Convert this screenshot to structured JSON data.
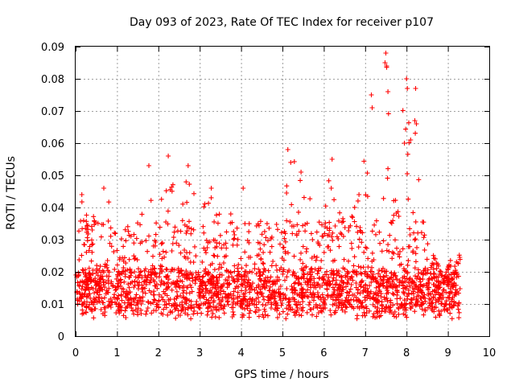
{
  "chart_data": {
    "type": "scatter",
    "title": "Day 093 of 2023, Rate Of TEC Index for receiver p107",
    "xlabel": "GPS time / hours",
    "ylabel": "ROTI / TECUs",
    "xlim": [
      0,
      10
    ],
    "ylim": [
      0,
      0.09
    ],
    "x_ticks": [
      "0",
      "1",
      "2",
      "3",
      "4",
      "5",
      "6",
      "7",
      "8",
      "9",
      "10"
    ],
    "y_ticks": [
      "0",
      "0.01",
      "0.02",
      "0.03",
      "0.04",
      "0.05",
      "0.06",
      "0.07",
      "0.08",
      "0.09"
    ],
    "grid": true,
    "marker": "+",
    "series_color": "#ff0000",
    "data_span_hours": [
      0,
      9.3
    ],
    "baseline_range": [
      0.007,
      0.02
    ],
    "envelope": [
      {
        "x": 0.0,
        "y": 0.04
      },
      {
        "x": 0.2,
        "y": 0.044
      },
      {
        "x": 0.5,
        "y": 0.038
      },
      {
        "x": 0.7,
        "y": 0.046
      },
      {
        "x": 1.0,
        "y": 0.035
      },
      {
        "x": 1.3,
        "y": 0.034
      },
      {
        "x": 1.5,
        "y": 0.036
      },
      {
        "x": 1.8,
        "y": 0.053
      },
      {
        "x": 2.0,
        "y": 0.037
      },
      {
        "x": 2.2,
        "y": 0.056
      },
      {
        "x": 2.5,
        "y": 0.04
      },
      {
        "x": 2.75,
        "y": 0.053
      },
      {
        "x": 3.0,
        "y": 0.038
      },
      {
        "x": 3.3,
        "y": 0.046
      },
      {
        "x": 3.6,
        "y": 0.039
      },
      {
        "x": 4.0,
        "y": 0.046
      },
      {
        "x": 4.3,
        "y": 0.036
      },
      {
        "x": 4.7,
        "y": 0.036
      },
      {
        "x": 5.0,
        "y": 0.037
      },
      {
        "x": 5.15,
        "y": 0.058
      },
      {
        "x": 5.5,
        "y": 0.051
      },
      {
        "x": 5.8,
        "y": 0.038
      },
      {
        "x": 6.2,
        "y": 0.055
      },
      {
        "x": 6.5,
        "y": 0.035
      },
      {
        "x": 6.9,
        "y": 0.045
      },
      {
        "x": 7.1,
        "y": 0.075
      },
      {
        "x": 7.3,
        "y": 0.06
      },
      {
        "x": 7.5,
        "y": 0.088
      },
      {
        "x": 7.7,
        "y": 0.048
      },
      {
        "x": 8.0,
        "y": 0.08
      },
      {
        "x": 8.2,
        "y": 0.077
      },
      {
        "x": 8.4,
        "y": 0.038
      },
      {
        "x": 8.6,
        "y": 0.028
      },
      {
        "x": 8.9,
        "y": 0.018
      },
      {
        "x": 9.1,
        "y": 0.025
      },
      {
        "x": 9.3,
        "y": 0.026
      }
    ],
    "highlights": [
      {
        "x": 0.15,
        "y": 0.044
      },
      {
        "x": 1.77,
        "y": 0.053
      },
      {
        "x": 2.24,
        "y": 0.056
      },
      {
        "x": 2.72,
        "y": 0.053
      },
      {
        "x": 5.13,
        "y": 0.058
      },
      {
        "x": 5.2,
        "y": 0.054
      },
      {
        "x": 6.2,
        "y": 0.055
      },
      {
        "x": 7.15,
        "y": 0.075
      },
      {
        "x": 7.17,
        "y": 0.071
      },
      {
        "x": 7.5,
        "y": 0.088
      },
      {
        "x": 7.48,
        "y": 0.085
      },
      {
        "x": 7.52,
        "y": 0.084
      },
      {
        "x": 7.55,
        "y": 0.076
      },
      {
        "x": 8.0,
        "y": 0.08
      },
      {
        "x": 8.02,
        "y": 0.077
      },
      {
        "x": 8.22,
        "y": 0.077
      },
      {
        "x": 8.2,
        "y": 0.067
      },
      {
        "x": 8.24,
        "y": 0.066
      },
      {
        "x": 8.1,
        "y": 0.061
      },
      {
        "x": 7.95,
        "y": 0.06
      },
      {
        "x": 5.45,
        "y": 0.051
      },
      {
        "x": 6.18,
        "y": 0.046
      },
      {
        "x": 6.85,
        "y": 0.044
      },
      {
        "x": 4.05,
        "y": 0.046
      },
      {
        "x": 3.28,
        "y": 0.046
      },
      {
        "x": 0.68,
        "y": 0.046
      }
    ]
  }
}
